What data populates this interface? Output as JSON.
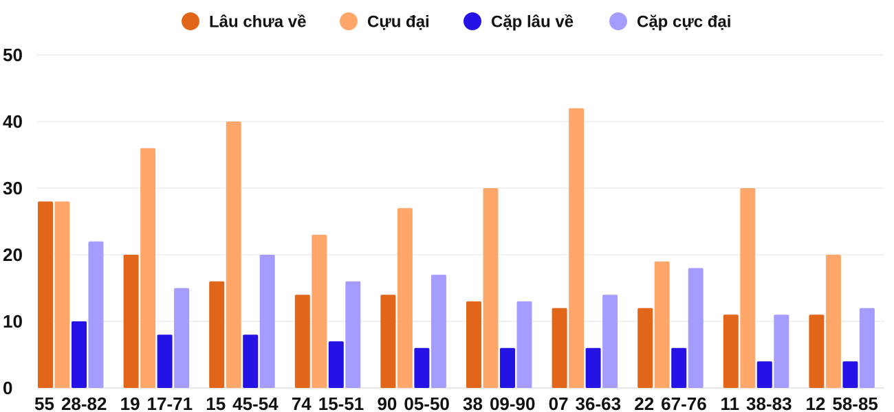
{
  "chart_data": {
    "type": "bar",
    "categories": [
      "55",
      "19",
      "15",
      "74",
      "90",
      "38",
      "07",
      "22",
      "11",
      "12"
    ],
    "pair_labels": [
      "28-82",
      "17-71",
      "45-54",
      "15-51",
      "05-50",
      "09-90",
      "36-63",
      "67-76",
      "38-83",
      "58-85"
    ],
    "series": [
      {
        "name": "Lâu chưa về",
        "color": "#e2661a",
        "values": [
          28,
          20,
          16,
          14,
          14,
          13,
          12,
          12,
          11,
          11
        ]
      },
      {
        "name": "Cựu đại",
        "color": "#ffa76b",
        "values": [
          28,
          36,
          40,
          23,
          27,
          30,
          42,
          19,
          30,
          20
        ]
      },
      {
        "name": "Cặp lâu về",
        "color": "#2413e4",
        "values": [
          10,
          8,
          8,
          7,
          6,
          6,
          6,
          6,
          4,
          4
        ]
      },
      {
        "name": "Cặp cực đại",
        "color": "#a49cff",
        "values": [
          22,
          15,
          20,
          16,
          17,
          13,
          14,
          18,
          11,
          12
        ]
      }
    ],
    "ylim": [
      0,
      50
    ],
    "yticks": [
      0,
      10,
      20,
      30,
      40,
      50
    ],
    "grid": true,
    "legend_position": "top-center",
    "title": "",
    "xlabel": "",
    "ylabel": ""
  }
}
